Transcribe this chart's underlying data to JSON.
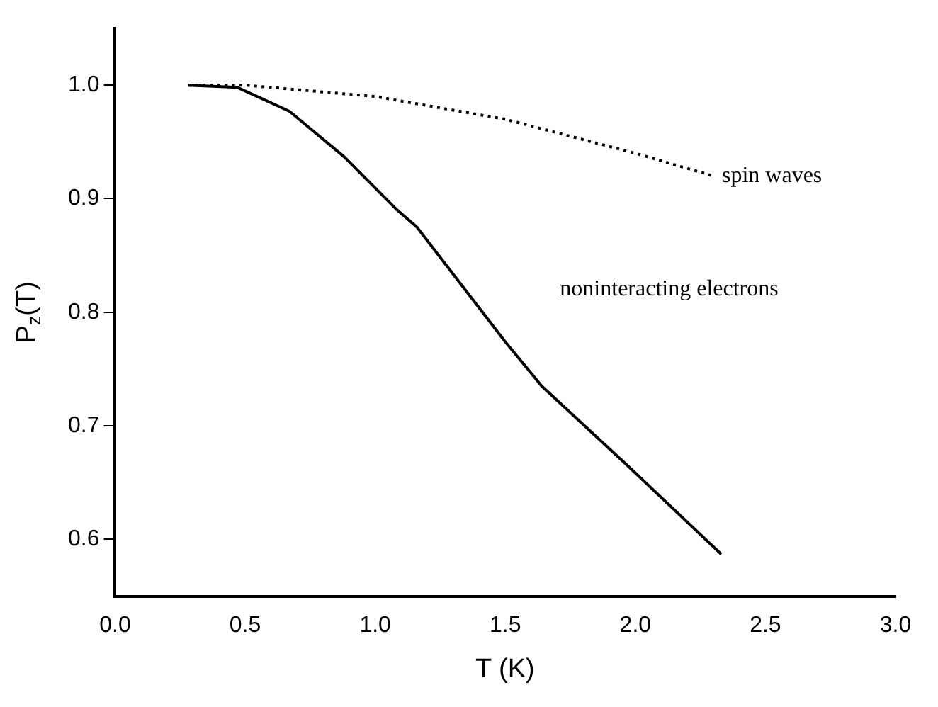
{
  "chart_data": {
    "type": "line",
    "xlabel": "T (K)",
    "ylabel": "P$_{z}$(T)",
    "xlim": [
      0,
      3
    ],
    "xticks": [
      {
        "value": 0,
        "label": "0.0"
      },
      {
        "value": 0.5,
        "label": "0.5"
      },
      {
        "value": 1,
        "label": "1.0"
      },
      1.5,
      {
        "value": 2,
        "label": "2.0"
      },
      2.5,
      {
        "value": 3,
        "label": "3.0"
      }
    ],
    "ylim": [
      0.55,
      1.05
    ],
    "yticks": [
      0.6,
      0.7,
      0.8,
      0.9,
      {
        "value": 1,
        "label": "1.0"
      }
    ],
    "grid": false,
    "legend": false,
    "marker": "none",
    "series": [
      {
        "color": "#000000",
        "line_style": "solid",
        "x": [
          0.28,
          0.47,
          0.67,
          0.88,
          1.08,
          1.16,
          1.5,
          1.64,
          1.97,
          2.33
        ],
        "values": [
          1.0,
          0.998,
          0.977,
          0.937,
          0.891,
          0.875,
          0.774,
          0.735,
          0.665,
          0.587
        ]
      },
      {
        "color": "#000000",
        "line_style": "dotted",
        "x": [
          0.28,
          0.5,
          1.0,
          1.5,
          2.0,
          2.3
        ],
        "values": [
          1.0,
          1.0,
          0.99,
          0.97,
          0.94,
          0.92
        ]
      }
    ],
    "annotations": [
      {
        "text": "spin waves",
        "x": 2.3,
        "y": 0.92
      },
      "noninteracting electrons"
    ]
  }
}
